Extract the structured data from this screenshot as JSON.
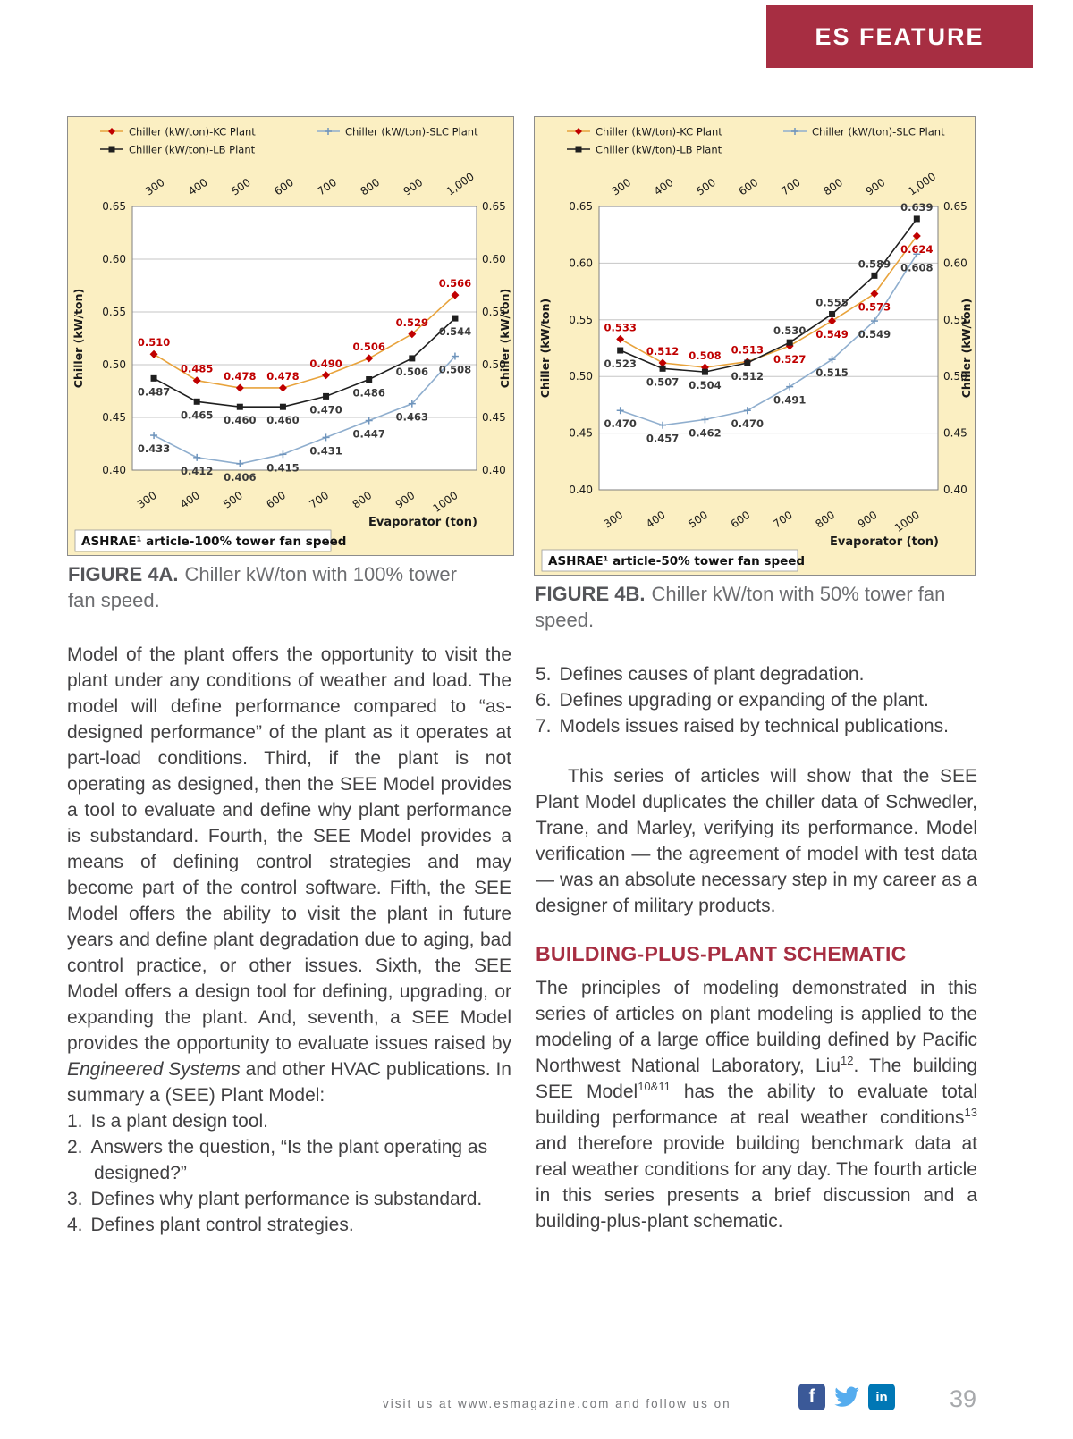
{
  "banner": {
    "label": "ES FEATURE"
  },
  "colors": {
    "banner": "#A72E42",
    "heading": "#A72E42",
    "body_text": "#414042",
    "caption": "#6D6E71",
    "caption_label": "#55565A",
    "footer": "#77787B",
    "page_number": "#A7A9AC",
    "facebook": "#3B5998",
    "twitter": "#55ACEE",
    "linkedin": "#0077B5"
  },
  "figures": [
    {
      "caption_label": "FIGURE 4A.",
      "caption_text": "Chiller kW/ton with 100% tower fan speed."
    },
    {
      "caption_label": "FIGURE 4B.",
      "caption_text": "Chiller kW/ton with 50% tower fan speed."
    }
  ],
  "chart_data": [
    {
      "type": "line",
      "categories": [
        300,
        400,
        500,
        600,
        700,
        800,
        900,
        1000
      ],
      "top_axis_ticks": [
        "300",
        "400",
        "500",
        "600",
        "700",
        "800",
        "900",
        "1,000"
      ],
      "bottom_axis_ticks": [
        "300",
        "400",
        "500",
        "600",
        "700",
        "800",
        "900",
        "1000"
      ],
      "xlabel": "Evaporator (ton)",
      "ylabel": "Chiller (kW/ton)",
      "ylim": [
        0.4,
        0.65
      ],
      "ytick_step": 0.05,
      "grid": "horizontal",
      "legend_position": "top",
      "annotation": "ASHRAE¹ article-100% tower fan speed",
      "series": [
        {
          "name": "Chiller (kW/ton)-KC Plant",
          "marker": "diamond",
          "line_color": "#E8A33C",
          "marker_color": "#C00000",
          "label_color": "#C00000",
          "values": [
            0.51,
            0.485,
            0.478,
            0.478,
            0.49,
            0.506,
            0.529,
            0.566
          ]
        },
        {
          "name": "Chiller (kW/ton)-LB Plant",
          "marker": "square",
          "line_color": "#1F1F1F",
          "marker_color": "#1F1F1F",
          "label_color": "#3A3A3A",
          "values": [
            0.487,
            0.465,
            0.46,
            0.46,
            0.47,
            0.486,
            0.506,
            0.544
          ]
        },
        {
          "name": "Chiller (kW/ton)-SLC Plant",
          "marker": "plus",
          "line_color": "#8FAECE",
          "marker_color": "#6E94BC",
          "label_color": "#3A3A3A",
          "values": [
            0.433,
            0.412,
            0.406,
            0.415,
            0.431,
            0.447,
            0.463,
            0.508
          ]
        }
      ]
    },
    {
      "type": "line",
      "categories": [
        300,
        400,
        500,
        600,
        700,
        800,
        900,
        1000
      ],
      "top_axis_ticks": [
        "300",
        "400",
        "500",
        "600",
        "700",
        "800",
        "900",
        "1,000"
      ],
      "bottom_axis_ticks": [
        "300",
        "400",
        "500",
        "600",
        "700",
        "800",
        "900",
        "1000"
      ],
      "xlabel": "Evaporator (ton)",
      "ylabel": "Chiller (kW/ton)",
      "ylim": [
        0.4,
        0.65
      ],
      "ytick_step": 0.05,
      "grid": "horizontal",
      "legend_position": "top",
      "annotation": "ASHRAE¹ article-50% tower fan speed",
      "series": [
        {
          "name": "Chiller (kW/ton)-KC Plant",
          "marker": "diamond",
          "line_color": "#E8A33C",
          "marker_color": "#C00000",
          "label_color": "#C00000",
          "values": [
            0.533,
            0.512,
            0.508,
            0.513,
            0.527,
            0.549,
            0.573,
            0.624
          ]
        },
        {
          "name": "Chiller (kW/ton)-LB Plant",
          "marker": "square",
          "line_color": "#1F1F1F",
          "marker_color": "#1F1F1F",
          "label_color": "#3A3A3A",
          "values": [
            0.523,
            0.507,
            0.504,
            0.512,
            0.53,
            0.555,
            0.589,
            0.639
          ]
        },
        {
          "name": "Chiller (kW/ton)-SLC Plant",
          "marker": "plus",
          "line_color": "#8FAECE",
          "marker_color": "#6E94BC",
          "label_color": "#3A3A3A",
          "values": [
            0.47,
            0.457,
            0.462,
            0.47,
            0.491,
            0.515,
            0.549,
            0.608
          ]
        }
      ]
    }
  ],
  "article": {
    "left": {
      "para_segments": [
        {
          "t": "Model of the plant offers the opportunity to visit the plant under any conditions of weather and load. The model will define performance compared to “as-designed performance” of the plant as it operates at part-load conditions. Third, if the plant is not operating as designed, then the SEE Model provides a tool to evaluate and define why plant performance is substandard. Fourth, the SEE Model provides a means of defining control strategies and may become part of the control software. Fifth, the SEE Model offers the ability to visit the plant in future years and define plant degradation due to aging, bad control practice, or other issues. Sixth, the SEE Model offers a design tool for defining, upgrading, or expanding the plant. And, seventh, a SEE Model provides the opportunity to evaluate issues raised by "
        },
        {
          "t": "Engineered Systems",
          "italic": true
        },
        {
          "t": " and other HVAC publications. In summary a (SEE) Plant Model:"
        }
      ],
      "list": [
        {
          "num": "1.",
          "text": "Is a plant design tool."
        },
        {
          "num": "2.",
          "text": "Answers the question, “Is the plant operating as designed?”"
        },
        {
          "num": "3.",
          "text": "Defines why plant performance is substandard."
        },
        {
          "num": "4.",
          "text": "Defines plant control strategies."
        }
      ]
    },
    "right": {
      "list": [
        {
          "num": "5.",
          "text": "Defines causes of plant degradation."
        },
        {
          "num": "6.",
          "text": "Defines upgrading or expanding of the plant."
        },
        {
          "num": "7.",
          "text": "Models issues raised by technical publications."
        }
      ],
      "para1": "This series of articles will show that the SEE Plant Model duplicates the chiller data of Schwedler, Trane, and Marley, verifying its performance. Model verification — the agreement of model with test data — was an absolute necessary step in my career as a designer of military products.",
      "heading": "BUILDING-PLUS-PLANT SCHEMATIC",
      "para2_segments": [
        {
          "t": "The principles of modeling demonstrated in this series of articles on plant modeling is applied to the modeling of a large office building defined by Pacific Northwest National Laboratory, Liu"
        },
        {
          "t": "12",
          "sup": true
        },
        {
          "t": ". The building SEE Model"
        },
        {
          "t": "10&11",
          "sup": true
        },
        {
          "t": " has the ability to evaluate total building performance at real weather conditions"
        },
        {
          "t": "13",
          "sup": true
        },
        {
          "t": " and therefore provide building benchmark data at real weather conditions for any day. The fourth article in this series presents a brief discussion and a building-plus-plant schematic."
        }
      ]
    }
  },
  "footer": {
    "text": "visit us at www.esmagazine.com and follow us on",
    "icons": [
      "facebook-icon",
      "twitter-icon",
      "linkedin-icon"
    ],
    "page_number": "39"
  }
}
